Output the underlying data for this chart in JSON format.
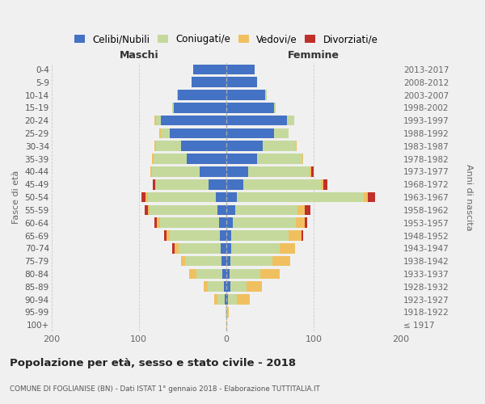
{
  "age_groups": [
    "0-4",
    "5-9",
    "10-14",
    "15-19",
    "20-24",
    "25-29",
    "30-34",
    "35-39",
    "40-44",
    "45-49",
    "50-54",
    "55-59",
    "60-64",
    "65-69",
    "70-74",
    "75-79",
    "80-84",
    "85-89",
    "90-94",
    "95-99",
    "100+"
  ],
  "birth_years": [
    "2013-2017",
    "2008-2012",
    "2003-2007",
    "1998-2002",
    "1993-1997",
    "1988-1992",
    "1983-1987",
    "1978-1982",
    "1973-1977",
    "1968-1972",
    "1963-1967",
    "1958-1962",
    "1953-1957",
    "1948-1952",
    "1943-1947",
    "1938-1942",
    "1933-1937",
    "1928-1932",
    "1923-1927",
    "1918-1922",
    "≤ 1917"
  ],
  "male_celibi": [
    38,
    40,
    55,
    60,
    75,
    65,
    52,
    45,
    30,
    20,
    12,
    10,
    8,
    7,
    6,
    5,
    4,
    3,
    2,
    0,
    0
  ],
  "male_coniugati": [
    0,
    0,
    1,
    2,
    5,
    10,
    28,
    38,
    55,
    60,
    78,
    78,
    68,
    58,
    48,
    42,
    30,
    18,
    8,
    1,
    0
  ],
  "male_vedovi": [
    0,
    0,
    0,
    0,
    2,
    2,
    2,
    2,
    2,
    1,
    2,
    2,
    3,
    3,
    5,
    5,
    8,
    5,
    4,
    0,
    0
  ],
  "male_divorziati": [
    0,
    0,
    0,
    0,
    0,
    0,
    0,
    0,
    0,
    3,
    5,
    3,
    3,
    3,
    3,
    0,
    0,
    0,
    0,
    0,
    0
  ],
  "female_celibi": [
    33,
    35,
    45,
    55,
    70,
    55,
    42,
    35,
    25,
    20,
    12,
    10,
    8,
    6,
    6,
    5,
    4,
    5,
    2,
    0,
    0
  ],
  "female_coniugati": [
    0,
    0,
    1,
    2,
    8,
    16,
    38,
    52,
    70,
    88,
    145,
    72,
    72,
    65,
    55,
    48,
    35,
    18,
    10,
    1,
    0
  ],
  "female_vedovi": [
    0,
    0,
    0,
    0,
    0,
    0,
    1,
    1,
    2,
    3,
    5,
    8,
    10,
    15,
    18,
    20,
    22,
    18,
    15,
    2,
    1
  ],
  "female_divorziati": [
    0,
    0,
    0,
    0,
    0,
    0,
    0,
    0,
    3,
    5,
    8,
    6,
    3,
    2,
    0,
    0,
    0,
    0,
    0,
    0,
    0
  ],
  "color_celibi": "#4472c4",
  "color_coniugati": "#c5d99d",
  "color_vedovi": "#f0c060",
  "color_divorziati": "#c0302a",
  "title": "Popolazione per età, sesso e stato civile - 2018",
  "subtitle": "COMUNE DI FOGLIANISE (BN) - Dati ISTAT 1° gennaio 2018 - Elaborazione TUTTITALIA.IT",
  "label_left": "Maschi",
  "label_right": "Femmine",
  "ylabel_left": "Fasce di età",
  "ylabel_right": "Anni di nascita",
  "xlim": 200,
  "bg_color": "#f0f0f0"
}
